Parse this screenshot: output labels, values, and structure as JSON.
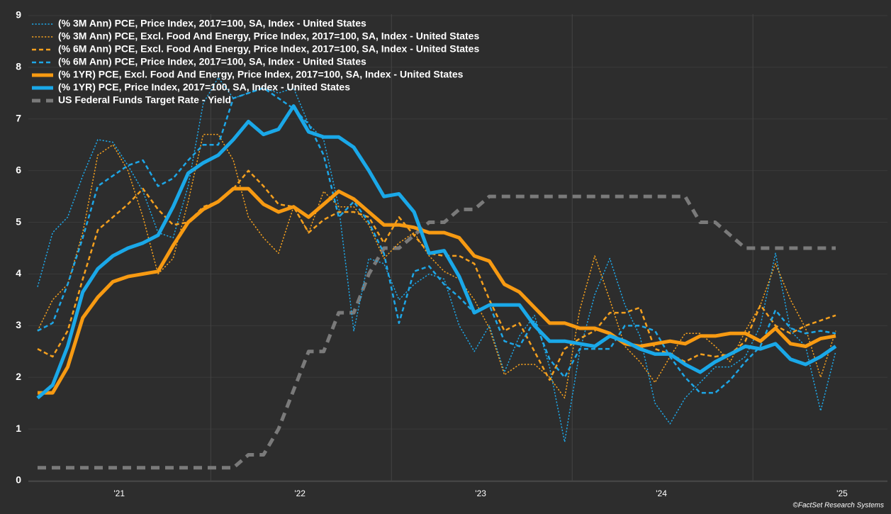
{
  "chart_data": {
    "type": "line",
    "source": "©FactSet Research Systems",
    "categories": [
      null,
      null,
      null,
      null,
      null,
      "'21",
      null,
      null,
      null,
      null,
      null,
      null,
      null,
      null,
      null,
      null,
      null,
      "'22",
      null,
      null,
      null,
      null,
      null,
      null,
      null,
      null,
      null,
      null,
      null,
      "'23",
      null,
      null,
      null,
      null,
      null,
      null,
      null,
      null,
      null,
      null,
      null,
      "'24",
      null,
      null,
      null,
      null,
      null,
      null,
      null,
      null,
      null,
      null,
      null,
      "'25"
    ],
    "ylim": [
      0,
      9
    ],
    "yticks": [
      0,
      1,
      2,
      3,
      4,
      5,
      6,
      7,
      8,
      9
    ],
    "grid": true,
    "legend": "top-left",
    "series": [
      {
        "name": "(% 3M Ann) PCE, Price Index, 2017=100, SA, Index - United States",
        "color": "#1ea6e6",
        "dash": "dotted",
        "width": 1.5,
        "values": [
          3.75,
          4.8,
          5.1,
          5.9,
          6.6,
          6.55,
          6.1,
          5.6,
          4.8,
          4.7,
          5.7,
          7.3,
          7.8,
          7.4,
          7.5,
          7.6,
          7.5,
          7.6,
          6.9,
          6.6,
          5.3,
          2.9,
          4.3,
          4.2,
          3.5,
          3.8,
          4.0,
          3.9,
          3.0,
          2.5,
          3.0,
          2.1,
          2.8,
          3.2,
          2.2,
          0.75,
          2.5,
          3.6,
          4.3,
          3.4,
          2.8,
          1.5,
          1.1,
          1.6,
          1.9,
          2.2,
          2.2,
          2.4,
          3.0,
          4.4,
          2.9,
          2.6,
          1.35,
          2.5
        ]
      },
      {
        "name": "(% 3M Ann) PCE, Excl. Food And Energy, Price Index, 2017=100, SA, Index - United States",
        "color": "#f5a01e",
        "dash": "dotted",
        "width": 1.5,
        "values": [
          2.9,
          3.5,
          3.8,
          4.8,
          6.3,
          6.5,
          6.0,
          5.1,
          4.0,
          4.3,
          5.4,
          6.7,
          6.7,
          6.2,
          5.1,
          4.7,
          4.4,
          5.3,
          4.8,
          5.6,
          5.3,
          5.3,
          4.95,
          4.3,
          4.6,
          4.8,
          4.35,
          4.05,
          3.9,
          3.5,
          2.95,
          2.05,
          2.25,
          2.25,
          2.0,
          1.6,
          3.3,
          4.35,
          3.5,
          2.6,
          2.3,
          1.9,
          2.4,
          2.85,
          2.85,
          2.6,
          2.3,
          2.9,
          3.4,
          4.2,
          3.5,
          2.95,
          2.0,
          2.9
        ]
      },
      {
        "name": "(% 6M Ann) PCE, Excl. Food And Energy, Price Index, 2017=100, SA, Index - United States",
        "color": "#f5a01e",
        "dash": "dashed",
        "width": 2.5,
        "values": [
          2.55,
          2.4,
          2.9,
          3.9,
          4.85,
          5.1,
          5.35,
          5.65,
          5.25,
          4.95,
          5.0,
          5.3,
          5.4,
          5.65,
          6.0,
          5.7,
          5.35,
          5.3,
          4.8,
          5.05,
          5.2,
          5.2,
          5.1,
          4.6,
          5.1,
          4.75,
          4.4,
          4.35,
          4.35,
          4.2,
          3.5,
          2.9,
          3.05,
          2.5,
          1.95,
          2.55,
          2.75,
          2.9,
          3.25,
          3.25,
          3.35,
          2.55,
          2.45,
          2.3,
          2.45,
          2.4,
          2.45,
          2.7,
          3.4,
          3.0,
          2.85,
          3.0,
          3.1,
          3.2
        ]
      },
      {
        "name": "(% 6M Ann) PCE, Price Index, 2017=100, SA, Index - United States",
        "color": "#1ea6e6",
        "dash": "dashed",
        "width": 2.5,
        "values": [
          2.9,
          3.05,
          3.8,
          4.7,
          5.7,
          5.9,
          6.1,
          6.2,
          5.7,
          5.85,
          6.2,
          6.5,
          6.5,
          7.4,
          7.5,
          7.6,
          7.4,
          7.2,
          6.9,
          6.3,
          5.1,
          5.4,
          5.0,
          4.4,
          3.05,
          4.05,
          4.15,
          3.8,
          3.55,
          3.25,
          3.4,
          2.7,
          2.6,
          3.1,
          2.35,
          2.0,
          2.55,
          2.55,
          2.55,
          3.0,
          3.0,
          2.9,
          2.4,
          2.0,
          1.7,
          1.7,
          1.95,
          2.3,
          2.6,
          3.3,
          2.95,
          2.85,
          2.9,
          2.85
        ]
      },
      {
        "name": "(% 1YR) PCE, Excl. Food And Energy, Price Index, 2017=100, SA, Index - United States",
        "color": "#f79a12",
        "dash": "solid",
        "width": 5,
        "values": [
          1.7,
          1.7,
          2.2,
          3.15,
          3.55,
          3.85,
          3.95,
          4.0,
          4.05,
          4.55,
          5.0,
          5.25,
          5.4,
          5.65,
          5.65,
          5.35,
          5.2,
          5.3,
          5.1,
          5.35,
          5.6,
          5.45,
          5.2,
          4.95,
          4.95,
          4.9,
          4.8,
          4.8,
          4.7,
          4.35,
          4.25,
          3.8,
          3.65,
          3.35,
          3.05,
          3.05,
          2.95,
          2.95,
          2.85,
          2.65,
          2.6,
          2.65,
          2.7,
          2.65,
          2.8,
          2.8,
          2.85,
          2.85,
          2.7,
          2.95,
          2.65,
          2.6,
          2.75,
          2.8
        ]
      },
      {
        "name": "(% 1YR) PCE, Price Index, 2017=100, SA, Index - United States",
        "color": "#1aa8e8",
        "dash": "solid",
        "width": 5,
        "values": [
          1.6,
          1.85,
          2.6,
          3.65,
          4.1,
          4.35,
          4.5,
          4.6,
          4.75,
          5.3,
          5.95,
          6.15,
          6.3,
          6.6,
          6.95,
          6.7,
          6.8,
          7.25,
          6.75,
          6.65,
          6.65,
          6.45,
          6.0,
          5.5,
          5.55,
          5.2,
          4.4,
          4.45,
          3.95,
          3.25,
          3.4,
          3.4,
          3.4,
          3.0,
          2.7,
          2.7,
          2.65,
          2.6,
          2.8,
          2.7,
          2.55,
          2.45,
          2.45,
          2.25,
          2.1,
          2.3,
          2.45,
          2.6,
          2.55,
          2.65,
          2.35,
          2.25,
          2.4,
          2.6
        ]
      },
      {
        "name": "US Federal Funds Target Rate - Yield",
        "color": "#7a7a7a",
        "dash": "dashed",
        "width": 5,
        "values": [
          0.25,
          0.25,
          0.25,
          0.25,
          0.25,
          0.25,
          0.25,
          0.25,
          0.25,
          0.25,
          0.25,
          0.25,
          0.25,
          0.25,
          0.5,
          0.5,
          1.0,
          1.75,
          2.5,
          2.5,
          3.25,
          3.25,
          4.0,
          4.5,
          4.5,
          4.75,
          5.0,
          5.0,
          5.25,
          5.25,
          5.5,
          5.5,
          5.5,
          5.5,
          5.5,
          5.5,
          5.5,
          5.5,
          5.5,
          5.5,
          5.5,
          5.5,
          5.5,
          5.5,
          5.0,
          5.0,
          4.75,
          4.5,
          4.5,
          4.5,
          4.5,
          4.5,
          4.5,
          4.5
        ]
      }
    ]
  }
}
